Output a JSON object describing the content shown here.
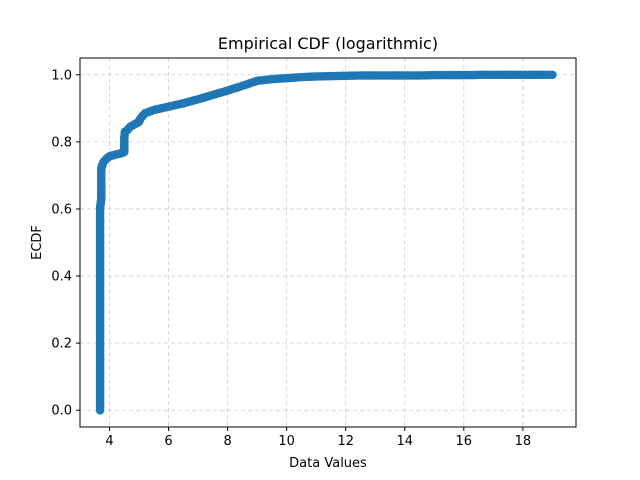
{
  "chart_data": {
    "type": "line",
    "title": "Empirical CDF (logarithmic)",
    "xlabel": "Data Values",
    "ylabel": "ECDF",
    "xlim": [
      3.0,
      19.8
    ],
    "ylim": [
      -0.05,
      1.05
    ],
    "xticks": [
      4,
      6,
      8,
      10,
      12,
      14,
      16,
      18
    ],
    "yticks": [
      0.0,
      0.2,
      0.4,
      0.6,
      0.8,
      1.0
    ],
    "grid": true,
    "grid_style": "dashed",
    "marker": "circle",
    "series": [
      {
        "color": "#1f77b4",
        "points": [
          [
            3.68,
            0.0
          ],
          [
            3.68,
            0.05
          ],
          [
            3.68,
            0.1
          ],
          [
            3.68,
            0.15
          ],
          [
            3.68,
            0.2
          ],
          [
            3.68,
            0.25
          ],
          [
            3.68,
            0.3
          ],
          [
            3.68,
            0.35
          ],
          [
            3.68,
            0.4
          ],
          [
            3.68,
            0.45
          ],
          [
            3.68,
            0.5
          ],
          [
            3.68,
            0.55
          ],
          [
            3.68,
            0.6
          ],
          [
            3.69,
            0.61
          ],
          [
            3.72,
            0.63
          ],
          [
            3.72,
            0.66
          ],
          [
            3.72,
            0.69
          ],
          [
            3.72,
            0.72
          ],
          [
            3.75,
            0.73
          ],
          [
            3.8,
            0.74
          ],
          [
            3.9,
            0.75
          ],
          [
            4.0,
            0.757
          ],
          [
            4.2,
            0.762
          ],
          [
            4.4,
            0.766
          ],
          [
            4.5,
            0.77
          ],
          [
            4.5,
            0.79
          ],
          [
            4.5,
            0.81
          ],
          [
            4.52,
            0.83
          ],
          [
            4.6,
            0.835
          ],
          [
            4.7,
            0.845
          ],
          [
            4.9,
            0.855
          ],
          [
            5.0,
            0.86
          ],
          [
            5.05,
            0.87
          ],
          [
            5.2,
            0.885
          ],
          [
            5.5,
            0.895
          ],
          [
            6.0,
            0.905
          ],
          [
            6.5,
            0.915
          ],
          [
            7.0,
            0.927
          ],
          [
            7.5,
            0.94
          ],
          [
            8.0,
            0.953
          ],
          [
            8.5,
            0.967
          ],
          [
            9.0,
            0.982
          ],
          [
            9.5,
            0.987
          ],
          [
            10.0,
            0.99
          ],
          [
            10.5,
            0.993
          ],
          [
            11.0,
            0.995
          ],
          [
            11.5,
            0.996
          ],
          [
            12.0,
            0.997
          ],
          [
            12.5,
            0.998
          ],
          [
            13.0,
            0.998
          ],
          [
            13.5,
            0.998
          ],
          [
            14.0,
            0.998
          ],
          [
            14.5,
            0.998
          ],
          [
            15.0,
            0.999
          ],
          [
            15.5,
            0.999
          ],
          [
            16.0,
            0.999
          ],
          [
            16.3,
            0.999
          ],
          [
            16.5,
            1.0
          ],
          [
            17.0,
            1.0
          ],
          [
            17.3,
            1.0
          ],
          [
            17.6,
            1.0
          ],
          [
            17.9,
            1.0
          ],
          [
            19.0,
            1.0
          ]
        ]
      }
    ]
  }
}
